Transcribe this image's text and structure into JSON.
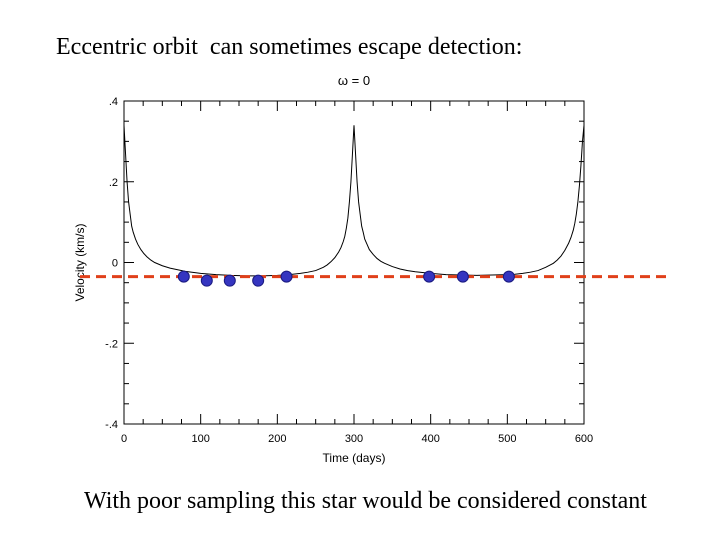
{
  "slide": {
    "title": "Eccentric orbit  can sometimes escape detection:",
    "caption": "With poor sampling this star would be considered constant"
  },
  "chart_data": {
    "type": "line",
    "title": "ω = 0",
    "xlabel": "Time (days)",
    "ylabel": "Velocity (km/s)",
    "xlim": [
      0,
      600
    ],
    "ylim": [
      -0.4,
      0.4
    ],
    "x_ticks": [
      0,
      100,
      200,
      300,
      400,
      500,
      600
    ],
    "x_tick_labels": [
      "0",
      "100",
      "200",
      "300",
      "400",
      "500",
      "600"
    ],
    "y_ticks": [
      -0.4,
      -0.2,
      0,
      0.2,
      0.4
    ],
    "y_tick_labels": [
      "-.4",
      "-.2",
      "0",
      ".2",
      ".4"
    ],
    "grid": false,
    "series": [
      {
        "style": "curve",
        "color": "#000000",
        "x": [
          0,
          2,
          4,
          6,
          8,
          10,
          12,
          15,
          18,
          22,
          26,
          30,
          35,
          40,
          50,
          60,
          70,
          80,
          100,
          120,
          140,
          160,
          180,
          200,
          210,
          220,
          230,
          240,
          250,
          260,
          265,
          270,
          275,
          280,
          283,
          286,
          288,
          290,
          292,
          294,
          296,
          298,
          300,
          302,
          304,
          306,
          308,
          310,
          312,
          314,
          317,
          320,
          325,
          330,
          335,
          340,
          350,
          360,
          370,
          380,
          400,
          420,
          440,
          460,
          480,
          500,
          510,
          520,
          530,
          540,
          550,
          560,
          565,
          570,
          575,
          580,
          583,
          586,
          588,
          590,
          592,
          594,
          596,
          598,
          600
        ],
        "y": [
          0.34,
          0.27,
          0.2,
          0.15,
          0.12,
          0.09,
          0.075,
          0.058,
          0.045,
          0.032,
          0.022,
          0.014,
          0.006,
          0.0,
          -0.008,
          -0.014,
          -0.018,
          -0.022,
          -0.027,
          -0.03,
          -0.032,
          -0.033,
          -0.033,
          -0.032,
          -0.031,
          -0.029,
          -0.027,
          -0.024,
          -0.02,
          -0.012,
          -0.006,
          0.002,
          0.012,
          0.026,
          0.037,
          0.052,
          0.065,
          0.085,
          0.11,
          0.15,
          0.2,
          0.27,
          0.34,
          0.27,
          0.2,
          0.15,
          0.12,
          0.09,
          0.075,
          0.058,
          0.045,
          0.032,
          0.02,
          0.01,
          0.003,
          -0.002,
          -0.01,
          -0.016,
          -0.02,
          -0.023,
          -0.027,
          -0.03,
          -0.031,
          -0.032,
          -0.031,
          -0.03,
          -0.029,
          -0.027,
          -0.024,
          -0.02,
          -0.012,
          -0.002,
          0.006,
          0.016,
          0.03,
          0.048,
          0.062,
          0.08,
          0.097,
          0.12,
          0.15,
          0.19,
          0.24,
          0.3,
          0.34
        ]
      },
      {
        "style": "points",
        "color": "#3535c0",
        "x": [
          78,
          108,
          138,
          175,
          212,
          398,
          442,
          502
        ],
        "y": [
          -0.035,
          -0.045,
          -0.045,
          -0.045,
          -0.035,
          -0.035,
          -0.035,
          -0.035
        ]
      }
    ],
    "reference_line": {
      "y": -0.035,
      "color": "#e0401a",
      "dashed": true
    }
  }
}
